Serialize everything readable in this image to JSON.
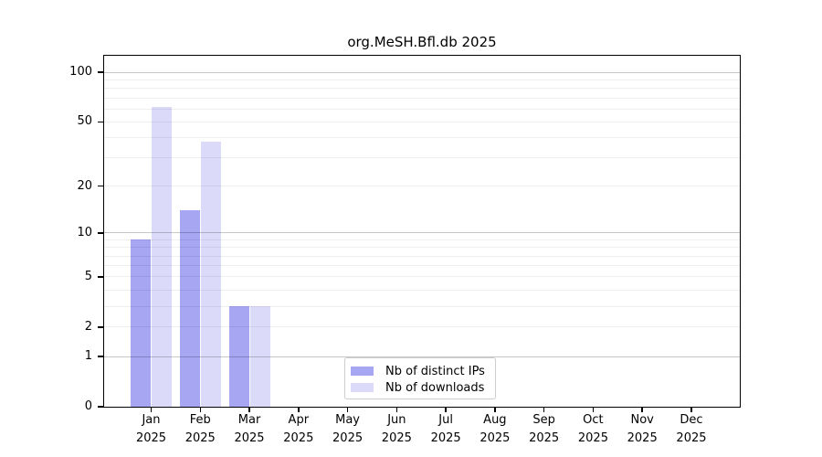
{
  "chart_data": {
    "type": "bar",
    "title": "org.MeSH.Bfl.db 2025",
    "categories": [
      "Jan",
      "Feb",
      "Mar",
      "Apr",
      "May",
      "Jun",
      "Jul",
      "Aug",
      "Sep",
      "Oct",
      "Nov",
      "Dec"
    ],
    "category_year": "2025",
    "series": [
      {
        "name": "Nb of distinct IPs",
        "color": "#a6a6f3",
        "values": [
          9,
          14,
          3,
          0,
          0,
          0,
          0,
          0,
          0,
          0,
          0,
          0
        ]
      },
      {
        "name": "Nb of downloads",
        "color": "#dbdbf9",
        "values": [
          62,
          38,
          3,
          0,
          0,
          0,
          0,
          0,
          0,
          0,
          0,
          0
        ]
      }
    ],
    "yscale": "log10(value+1)",
    "ylim": [
      0,
      126
    ],
    "yticks": [
      100,
      50,
      20,
      10,
      5,
      2,
      1,
      0
    ],
    "major_gridlines": [
      1,
      10,
      100
    ],
    "minor_gridlines": [
      2,
      3,
      4,
      5,
      6,
      7,
      8,
      9,
      20,
      30,
      40,
      50,
      60,
      70,
      80,
      90
    ],
    "grid": "on",
    "legend_position": "lower center inside plot",
    "background_color": "#ffffff",
    "axis_color": "#000000"
  }
}
